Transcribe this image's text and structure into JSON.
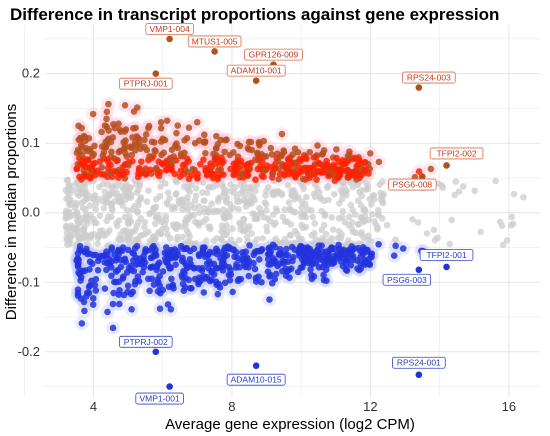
{
  "chart_data": {
    "type": "scatter",
    "title": "Difference in transcript proportions against gene expression",
    "xlabel": "Average gene expression (log2 CPM)",
    "ylabel": "Difference in median proportions",
    "xlim": [
      2.6,
      16.9
    ],
    "ylim": [
      -0.265,
      0.27
    ],
    "x_ticks": [
      4,
      8,
      12,
      16
    ],
    "x_tick_labels": [
      "4",
      "8",
      "12",
      "16"
    ],
    "y_ticks": [
      -0.2,
      -0.1,
      0.0,
      0.1,
      0.2
    ],
    "y_tick_labels": [
      "-0.2",
      "-0.1",
      "0.0",
      "0.1",
      "0.2"
    ],
    "grid": true,
    "legend": "none",
    "colors": {
      "up": "#ff2200",
      "up_edge": "#b5501c",
      "down": "#2233dd",
      "neutral": "#cccccc",
      "halo_up": "#ffc0d6",
      "halo_down": "#bfc8ff",
      "label_up_border": "#d96b4a",
      "label_up_text": "#c0391b",
      "label_down_border": "#3344cc",
      "label_down_text": "#2a3dbf",
      "grid": "#e4e4e4"
    },
    "series": [
      {
        "group": "up",
        "description_color": "red"
      },
      {
        "group": "down",
        "description_color": "blue"
      },
      {
        "group": "neutral",
        "description_color": "grey"
      }
    ],
    "annotations": [
      {
        "label": "VMP1-004",
        "x": 6.2,
        "y": 0.25,
        "group": "up"
      },
      {
        "label": "MTUS1-005",
        "x": 7.5,
        "y": 0.232,
        "group": "up"
      },
      {
        "label": "GPR126-009",
        "x": 9.2,
        "y": 0.213,
        "group": "up"
      },
      {
        "label": "ADAM10-001",
        "x": 8.7,
        "y": 0.19,
        "group": "up"
      },
      {
        "label": "PTPRJ-001",
        "x": 5.8,
        "y": 0.2,
        "group": "up"
      },
      {
        "label": "RPS24-003",
        "x": 13.4,
        "y": 0.18,
        "group": "up"
      },
      {
        "label": "TFPI2-002",
        "x": 14.2,
        "y": 0.068,
        "group": "up"
      },
      {
        "label": "PSG6-008",
        "x": 13.5,
        "y": 0.052,
        "group": "up"
      },
      {
        "label": "TFPI2-001",
        "x": 14.2,
        "y": -0.078,
        "group": "down"
      },
      {
        "label": "PSG6-003",
        "x": 13.4,
        "y": -0.082,
        "group": "down"
      },
      {
        "label": "PTPRJ-002",
        "x": 5.8,
        "y": -0.2,
        "group": "down"
      },
      {
        "label": "ADAM10-015",
        "x": 8.7,
        "y": -0.22,
        "group": "down"
      },
      {
        "label": "RPS24-001",
        "x": 13.4,
        "y": -0.233,
        "group": "down"
      },
      {
        "label": "VMP1-001",
        "x": 6.2,
        "y": -0.25,
        "group": "down"
      }
    ]
  }
}
